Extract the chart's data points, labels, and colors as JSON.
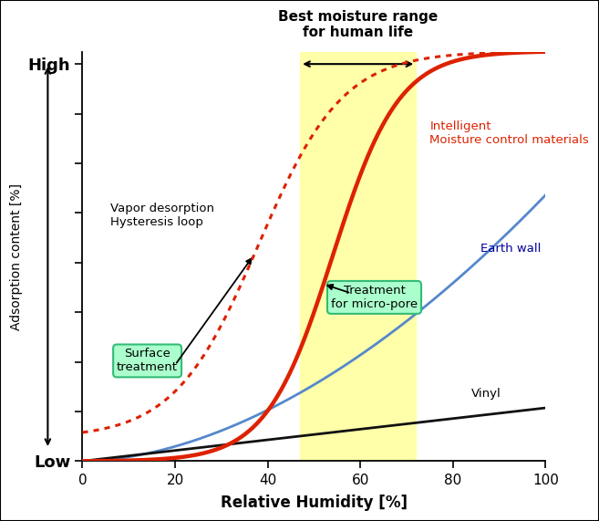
{
  "xlabel": "Relative Humidity [%]",
  "ylabel": "Adsorption content [%]",
  "xlim": [
    0,
    100
  ],
  "shaded_region": [
    47,
    72
  ],
  "shaded_color": "#ffffaa",
  "curves": {
    "intelligent_solid": {
      "color": "#dd2200",
      "linewidth": 3.2
    },
    "intelligent_dotted": {
      "color": "#dd2200",
      "linewidth": 2.2
    },
    "earth_wall": {
      "color": "#5588cc",
      "linewidth": 2.0
    },
    "vinyl": {
      "color": "#111111",
      "linewidth": 2.0
    }
  },
  "background_color": "#ffffff",
  "border_color": "#000000"
}
